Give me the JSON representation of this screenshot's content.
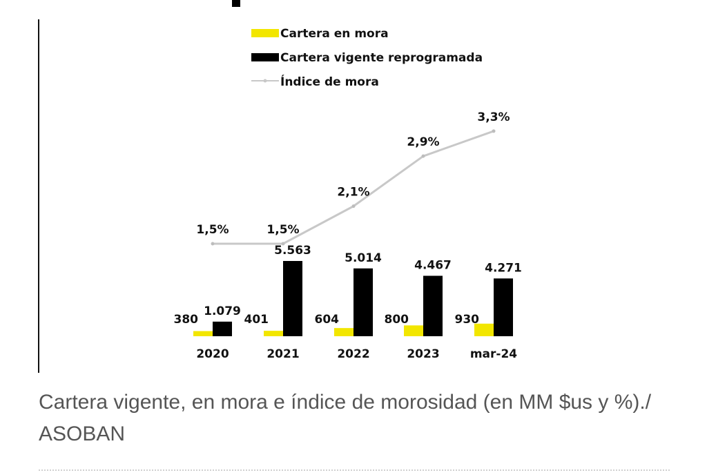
{
  "chart_data": {
    "type": "bar",
    "categories": [
      "2020",
      "2021",
      "2022",
      "2023",
      "mar-24"
    ],
    "series": [
      {
        "name": "Cartera en mora",
        "kind": "bar",
        "color": "#f2e600",
        "values": [
          380,
          401,
          604,
          800,
          930
        ],
        "labels": [
          "380",
          "401",
          "604",
          "800",
          "930"
        ]
      },
      {
        "name": "Cartera vigente reprogramada",
        "kind": "bar",
        "color": "#000000",
        "values": [
          1079,
          5563,
          5014,
          4467,
          4271
        ],
        "labels": [
          "1.079",
          "5.563",
          "5.014",
          "4.467",
          "4.271"
        ]
      },
      {
        "name": "Índice de mora",
        "kind": "line",
        "color": "#c8c8c8",
        "values": [
          1.5,
          1.5,
          2.1,
          2.9,
          3.3
        ],
        "labels": [
          "1,5%",
          "1,5%",
          "2,1%",
          "2,9%",
          "3,3%"
        ]
      }
    ],
    "legend_position": "top",
    "grid": false
  },
  "caption": "Cartera vigente, en mora e índice de morosidad (en MM $us y %)./ ASOBAN"
}
